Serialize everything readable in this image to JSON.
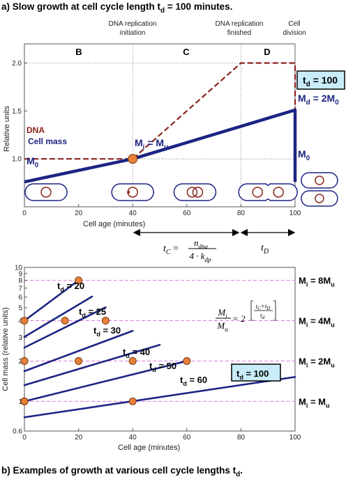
{
  "panel_a": {
    "title_prefix": "a) Slow growth at cell cycle length t",
    "title_sub": "d",
    "title_suffix": " = 100 minutes.",
    "annotations": {
      "initiation_1": "DNA replication",
      "initiation_2": "initiation",
      "finished_1": "DNA replication",
      "finished_2": "finished",
      "division_1": "Cell",
      "division_2": "division"
    },
    "phases": [
      "B",
      "C",
      "D"
    ],
    "labels": {
      "dna": "DNA",
      "cell_mass": "Cell mass",
      "m0": "M",
      "m0_sub": "0",
      "mi_text": "M",
      "mi_sub": "i",
      "mi_rest": " = M",
      "mu_sub": "u",
      "md_text": "M",
      "md_sub": "d",
      "md_rest": " = 2M",
      "md_sub2": "0",
      "m0_end": "M",
      "m0_end_sub": "0",
      "td_box": "t",
      "td_box_sub": "d",
      "td_box_rest": " = 100"
    },
    "formula": {
      "tc_lhs": "t",
      "tc_lhs_sub": "C",
      "eq": " =",
      "num": "n",
      "num_sub": "dna",
      "den": "4 · k",
      "den_sub": "dp",
      "td": "t",
      "td_sub": "D"
    },
    "chart_data": {
      "type": "line",
      "xlabel": "Cell age (minutes)",
      "ylabel": "Relative units",
      "xlim": [
        0,
        100
      ],
      "ylim": [
        0.5,
        2.2
      ],
      "xticks": [
        0,
        20,
        40,
        60,
        80,
        100
      ],
      "yticks": [
        1.0,
        1.5,
        2.0
      ],
      "ytick_labels": [
        "1.0",
        "1.5",
        "2.0"
      ],
      "grid": "dotted at x=40, x=80, x=100, y=1.0, y=2.0",
      "series": [
        {
          "name": "DNA",
          "color": "#8b231c",
          "style": "dashed",
          "x": [
            0,
            40,
            80,
            100,
            100
          ],
          "y": [
            1.0,
            1.0,
            2.0,
            2.0,
            1.0
          ]
        },
        {
          "name": "Cell mass",
          "color": "#1c2483",
          "style": "solid",
          "x": [
            0,
            40,
            100,
            100
          ],
          "y": [
            0.76,
            1.0,
            1.51,
            0.76
          ]
        }
      ],
      "markers": [
        {
          "x": 40,
          "y": 1.0,
          "color": "#e8803a"
        }
      ]
    },
    "cells": [
      {
        "x": 8,
        "type": "single"
      },
      {
        "x": 40,
        "type": "initiating"
      },
      {
        "x": 63,
        "type": "replicating"
      },
      {
        "x": 90,
        "type": "constricting"
      },
      {
        "x": 109,
        "type": "divided"
      }
    ]
  },
  "panel_b": {
    "caption_prefix": "b) Examples of growth at various cell cycle lengths t",
    "caption_sub": "d",
    "caption_suffix": ".",
    "formula": {
      "num": "M",
      "num_sub": "i",
      "den": "M",
      "den_sub": "u",
      "eq": " = 2",
      "exp_num": "t",
      "exp_num_sub": "C",
      "exp_plus": "+t",
      "exp_plus_sub": "D",
      "exp_den": "t",
      "exp_den_sub": "d"
    },
    "right_labels": [
      {
        "y": 8,
        "text": "M",
        "sub": "i",
        "rest": " = 8M",
        "sub2": "u"
      },
      {
        "y": 4,
        "text": "M",
        "sub": "i",
        "rest": " = 4M",
        "sub2": "u"
      },
      {
        "y": 2,
        "text": "M",
        "sub": "i",
        "rest": " = 2M",
        "sub2": "u"
      },
      {
        "y": 1,
        "text": "M",
        "sub": "i",
        "rest": " = M",
        "sub2": "u"
      }
    ],
    "chart_data": {
      "type": "line",
      "xlabel": "Cell age (minutes)",
      "ylabel": "Cell mass (relative units)",
      "yscale": "log",
      "xlim": [
        0,
        100
      ],
      "ylim": [
        0.6,
        10
      ],
      "xticks": [
        0,
        20,
        40,
        60,
        80,
        100
      ],
      "yticks": [
        0.6,
        1,
        2,
        3,
        4,
        5,
        6,
        7,
        8,
        9,
        10
      ],
      "ytick_labels": [
        "0.6",
        "1",
        "2",
        "3",
        "4",
        "5",
        "6",
        "7",
        "8",
        "9",
        "10"
      ],
      "hlines": [
        1,
        2,
        4,
        8
      ],
      "series": [
        {
          "name": "t",
          "sub": "d",
          "rest": " = 20",
          "td": 20,
          "y0": 4.0,
          "xend": 20,
          "marker_x": [
            0,
            20
          ]
        },
        {
          "name": "t",
          "sub": "d",
          "rest": " = 25",
          "td": 25,
          "y0": 3.03,
          "xend": 25,
          "marker_x": []
        },
        {
          "name": "t",
          "sub": "d",
          "rest": " = 30",
          "td": 30,
          "y0": 2.52,
          "xend": 30,
          "marker_x": [
            0,
            15,
            30
          ]
        },
        {
          "name": "t",
          "sub": "d",
          "rest": " = 40",
          "td": 40,
          "y0": 1.68,
          "xend": 40,
          "marker_x": []
        },
        {
          "name": "t",
          "sub": "d",
          "rest": " = 50",
          "td": 50,
          "y0": 1.32,
          "xend": 50,
          "marker_x": [
            0,
            20,
            40
          ]
        },
        {
          "name": "t",
          "sub": "d",
          "rest": " = 60",
          "td": 60,
          "y0": 1.0,
          "xend": 60,
          "marker_x": [
            0,
            60
          ]
        },
        {
          "name": "t",
          "sub": "d",
          "rest": " = 100",
          "td": 100,
          "y0": 0.76,
          "xend": 100,
          "marker_x": [
            0,
            40
          ],
          "boxed": true
        }
      ]
    }
  }
}
